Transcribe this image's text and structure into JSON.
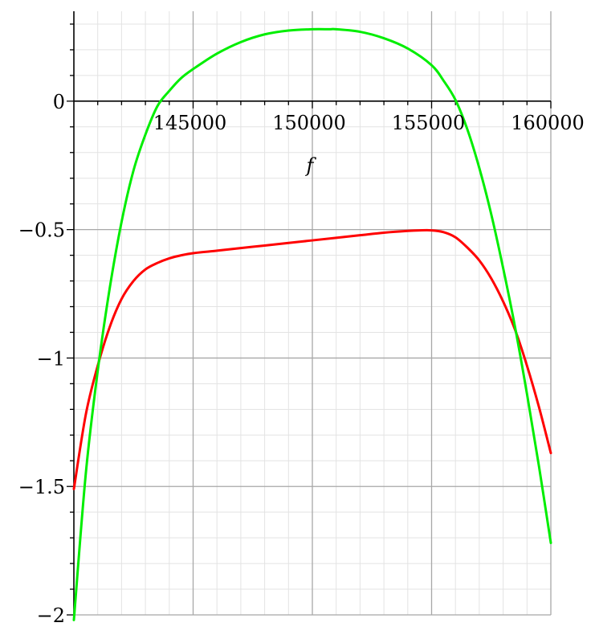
{
  "chart_data": {
    "type": "line",
    "title": "",
    "xlabel": "f",
    "ylabel": "",
    "xlim": [
      140000,
      160000
    ],
    "ylim": [
      -2,
      0.35
    ],
    "grid": true,
    "x_ticks": [
      145000,
      150000,
      155000,
      160000
    ],
    "y_ticks": [
      0,
      -0.5,
      -1,
      -1.5,
      -2
    ],
    "x_tick_labels": [
      "145000",
      "150000",
      "155000",
      "160000"
    ],
    "y_tick_labels": [
      "0",
      "−0.5",
      "−1",
      "−1.5",
      "−2"
    ],
    "series": [
      {
        "color": "#ff0000",
        "x": [
          140000,
          140500,
          141000,
          141500,
          142000,
          142500,
          143000,
          143500,
          144000,
          144500,
          145000,
          146000,
          147000,
          148000,
          149000,
          150000,
          151000,
          152000,
          153000,
          154000,
          154500,
          155000,
          155500,
          156000,
          156500,
          157000,
          157500,
          158000,
          158500,
          159000,
          159500,
          160000
        ],
        "values": [
          -1.51,
          -1.22,
          -1.03,
          -0.88,
          -0.77,
          -0.7,
          -0.655,
          -0.63,
          -0.612,
          -0.6,
          -0.592,
          -0.582,
          -0.572,
          -0.562,
          -0.552,
          -0.542,
          -0.532,
          -0.522,
          -0.512,
          -0.505,
          -0.503,
          -0.503,
          -0.51,
          -0.53,
          -0.57,
          -0.62,
          -0.69,
          -0.78,
          -0.89,
          -1.03,
          -1.19,
          -1.37
        ]
      },
      {
        "color": "#00ee00",
        "x": [
          140000,
          140500,
          141000,
          141500,
          142000,
          142500,
          143000,
          143500,
          144000,
          144500,
          145000,
          146000,
          147000,
          148000,
          149000,
          150000,
          150700,
          151000,
          152000,
          153000,
          154000,
          155000,
          155500,
          156000,
          156500,
          157000,
          157500,
          158000,
          158500,
          159000,
          159500,
          160000
        ],
        "values": [
          -2.02,
          -1.45,
          -1.05,
          -0.73,
          -0.47,
          -0.27,
          -0.13,
          -0.02,
          0.04,
          0.09,
          0.125,
          0.185,
          0.23,
          0.26,
          0.275,
          0.28,
          0.28,
          0.28,
          0.27,
          0.245,
          0.205,
          0.14,
          0.08,
          0.005,
          -0.11,
          -0.26,
          -0.44,
          -0.65,
          -0.88,
          -1.14,
          -1.42,
          -1.72
        ]
      }
    ]
  }
}
